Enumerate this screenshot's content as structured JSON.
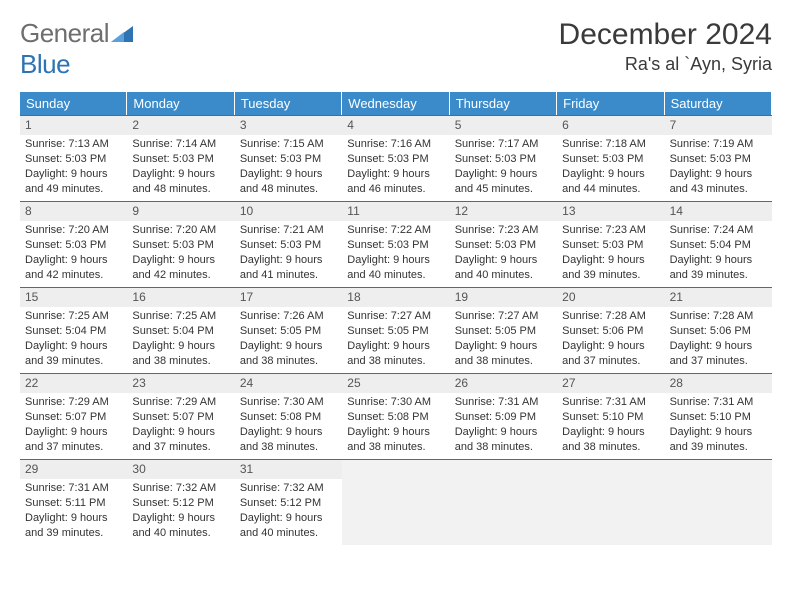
{
  "logo": {
    "word1": "General",
    "word2": "Blue",
    "triangle_color": "#2e74b5",
    "text_color": "#6e6e6e"
  },
  "header": {
    "month_title": "December 2024",
    "location": "Ra's al `Ayn, Syria"
  },
  "colors": {
    "header_blue": "#3b8bca",
    "border_blue": "#2e74b5",
    "daynum_bg": "#eeeeee",
    "blank_bg": "#f2f2f2",
    "text": "#333333"
  },
  "days_of_week": [
    "Sunday",
    "Monday",
    "Tuesday",
    "Wednesday",
    "Thursday",
    "Friday",
    "Saturday"
  ],
  "days": [
    {
      "n": "1",
      "sunrise": "7:13 AM",
      "sunset": "5:03 PM",
      "daylight": "9 hours and 49 minutes."
    },
    {
      "n": "2",
      "sunrise": "7:14 AM",
      "sunset": "5:03 PM",
      "daylight": "9 hours and 48 minutes."
    },
    {
      "n": "3",
      "sunrise": "7:15 AM",
      "sunset": "5:03 PM",
      "daylight": "9 hours and 48 minutes."
    },
    {
      "n": "4",
      "sunrise": "7:16 AM",
      "sunset": "5:03 PM",
      "daylight": "9 hours and 46 minutes."
    },
    {
      "n": "5",
      "sunrise": "7:17 AM",
      "sunset": "5:03 PM",
      "daylight": "9 hours and 45 minutes."
    },
    {
      "n": "6",
      "sunrise": "7:18 AM",
      "sunset": "5:03 PM",
      "daylight": "9 hours and 44 minutes."
    },
    {
      "n": "7",
      "sunrise": "7:19 AM",
      "sunset": "5:03 PM",
      "daylight": "9 hours and 43 minutes."
    },
    {
      "n": "8",
      "sunrise": "7:20 AM",
      "sunset": "5:03 PM",
      "daylight": "9 hours and 42 minutes."
    },
    {
      "n": "9",
      "sunrise": "7:20 AM",
      "sunset": "5:03 PM",
      "daylight": "9 hours and 42 minutes."
    },
    {
      "n": "10",
      "sunrise": "7:21 AM",
      "sunset": "5:03 PM",
      "daylight": "9 hours and 41 minutes."
    },
    {
      "n": "11",
      "sunrise": "7:22 AM",
      "sunset": "5:03 PM",
      "daylight": "9 hours and 40 minutes."
    },
    {
      "n": "12",
      "sunrise": "7:23 AM",
      "sunset": "5:03 PM",
      "daylight": "9 hours and 40 minutes."
    },
    {
      "n": "13",
      "sunrise": "7:23 AM",
      "sunset": "5:03 PM",
      "daylight": "9 hours and 39 minutes."
    },
    {
      "n": "14",
      "sunrise": "7:24 AM",
      "sunset": "5:04 PM",
      "daylight": "9 hours and 39 minutes."
    },
    {
      "n": "15",
      "sunrise": "7:25 AM",
      "sunset": "5:04 PM",
      "daylight": "9 hours and 39 minutes."
    },
    {
      "n": "16",
      "sunrise": "7:25 AM",
      "sunset": "5:04 PM",
      "daylight": "9 hours and 38 minutes."
    },
    {
      "n": "17",
      "sunrise": "7:26 AM",
      "sunset": "5:05 PM",
      "daylight": "9 hours and 38 minutes."
    },
    {
      "n": "18",
      "sunrise": "7:27 AM",
      "sunset": "5:05 PM",
      "daylight": "9 hours and 38 minutes."
    },
    {
      "n": "19",
      "sunrise": "7:27 AM",
      "sunset": "5:05 PM",
      "daylight": "9 hours and 38 minutes."
    },
    {
      "n": "20",
      "sunrise": "7:28 AM",
      "sunset": "5:06 PM",
      "daylight": "9 hours and 37 minutes."
    },
    {
      "n": "21",
      "sunrise": "7:28 AM",
      "sunset": "5:06 PM",
      "daylight": "9 hours and 37 minutes."
    },
    {
      "n": "22",
      "sunrise": "7:29 AM",
      "sunset": "5:07 PM",
      "daylight": "9 hours and 37 minutes."
    },
    {
      "n": "23",
      "sunrise": "7:29 AM",
      "sunset": "5:07 PM",
      "daylight": "9 hours and 37 minutes."
    },
    {
      "n": "24",
      "sunrise": "7:30 AM",
      "sunset": "5:08 PM",
      "daylight": "9 hours and 38 minutes."
    },
    {
      "n": "25",
      "sunrise": "7:30 AM",
      "sunset": "5:08 PM",
      "daylight": "9 hours and 38 minutes."
    },
    {
      "n": "26",
      "sunrise": "7:31 AM",
      "sunset": "5:09 PM",
      "daylight": "9 hours and 38 minutes."
    },
    {
      "n": "27",
      "sunrise": "7:31 AM",
      "sunset": "5:10 PM",
      "daylight": "9 hours and 38 minutes."
    },
    {
      "n": "28",
      "sunrise": "7:31 AM",
      "sunset": "5:10 PM",
      "daylight": "9 hours and 39 minutes."
    },
    {
      "n": "29",
      "sunrise": "7:31 AM",
      "sunset": "5:11 PM",
      "daylight": "9 hours and 39 minutes."
    },
    {
      "n": "30",
      "sunrise": "7:32 AM",
      "sunset": "5:12 PM",
      "daylight": "9 hours and 40 minutes."
    },
    {
      "n": "31",
      "sunrise": "7:32 AM",
      "sunset": "5:12 PM",
      "daylight": "9 hours and 40 minutes."
    }
  ],
  "labels": {
    "sunrise": "Sunrise: ",
    "sunset": "Sunset: ",
    "daylight": "Daylight: "
  },
  "trailing_blanks": 4
}
